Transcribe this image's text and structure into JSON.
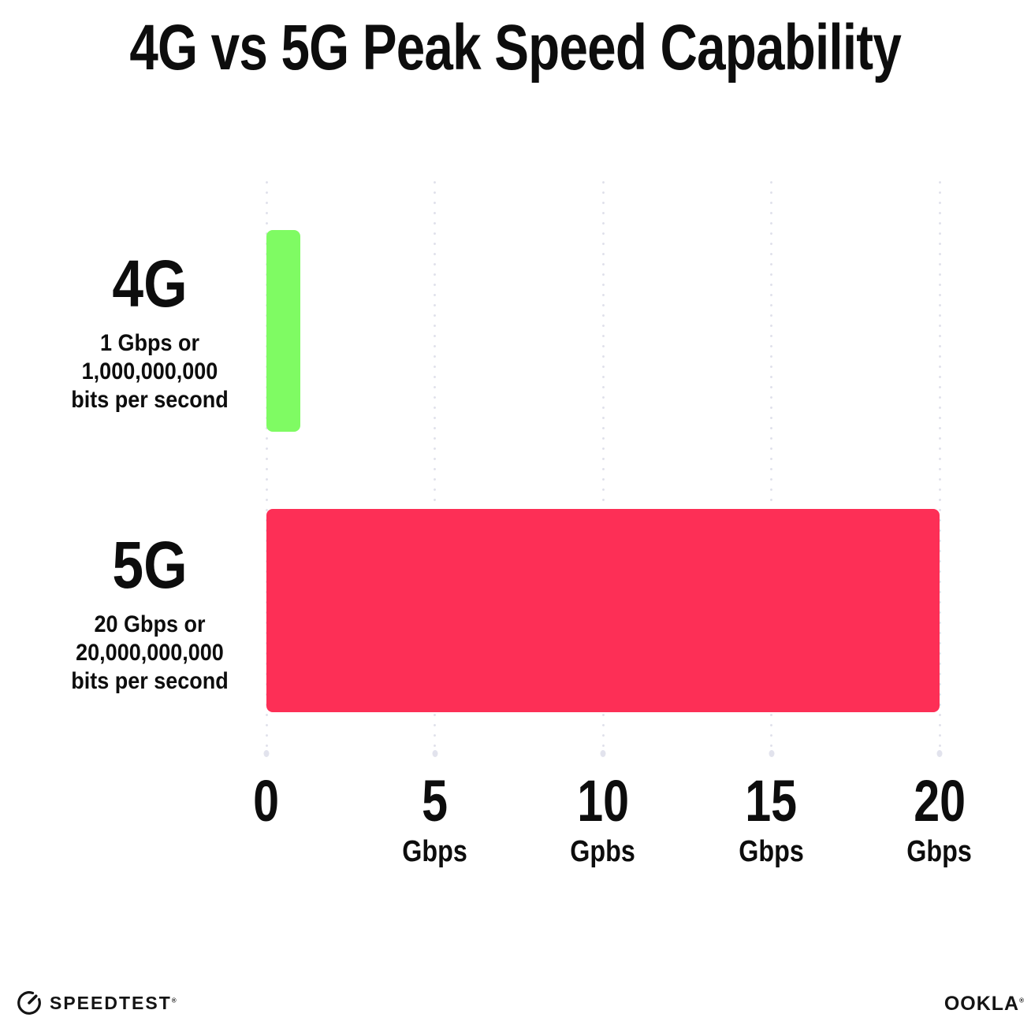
{
  "title": "4G vs 5G Peak Speed Capability",
  "chart_data": {
    "type": "bar",
    "orientation": "horizontal",
    "title": "4G vs 5G Peak Speed Capability",
    "categories": [
      "4G",
      "5G"
    ],
    "values": [
      1,
      20
    ],
    "value_unit": "Gbps",
    "xlim": [
      0,
      20
    ],
    "grid": "vertical dotted gridlines at 0, 5, 10, 15, 20",
    "legend": "none",
    "rows": [
      {
        "name": "4G",
        "value": 1,
        "color": "#7FFB63",
        "sub": [
          "1 Gbps or",
          "1,000,000,000",
          "bits per second"
        ]
      },
      {
        "name": "5G",
        "value": 20,
        "color": "#FD2F56",
        "sub": [
          "20 Gbps or",
          "20,000,000,000",
          "bits per second"
        ]
      }
    ],
    "x_ticks": [
      {
        "value": "0",
        "unit": ""
      },
      {
        "value": "5",
        "unit": "Gbps"
      },
      {
        "value": "10",
        "unit": "Gpbs"
      },
      {
        "value": "15",
        "unit": "Gbps"
      },
      {
        "value": "20",
        "unit": "Gbps"
      }
    ]
  },
  "footer": {
    "speedtest_wordmark": "SPEEDTEST",
    "speedtest_trademark": "®",
    "ookla_wordmark": "OOKLA",
    "ookla_trademark": "®"
  },
  "colors": {
    "background": "#FFFFFF",
    "text": "#0D0D0D",
    "bar_4g": "#7FFB63",
    "bar_5g": "#FD2F56",
    "gridline": "#DFE0EA"
  }
}
